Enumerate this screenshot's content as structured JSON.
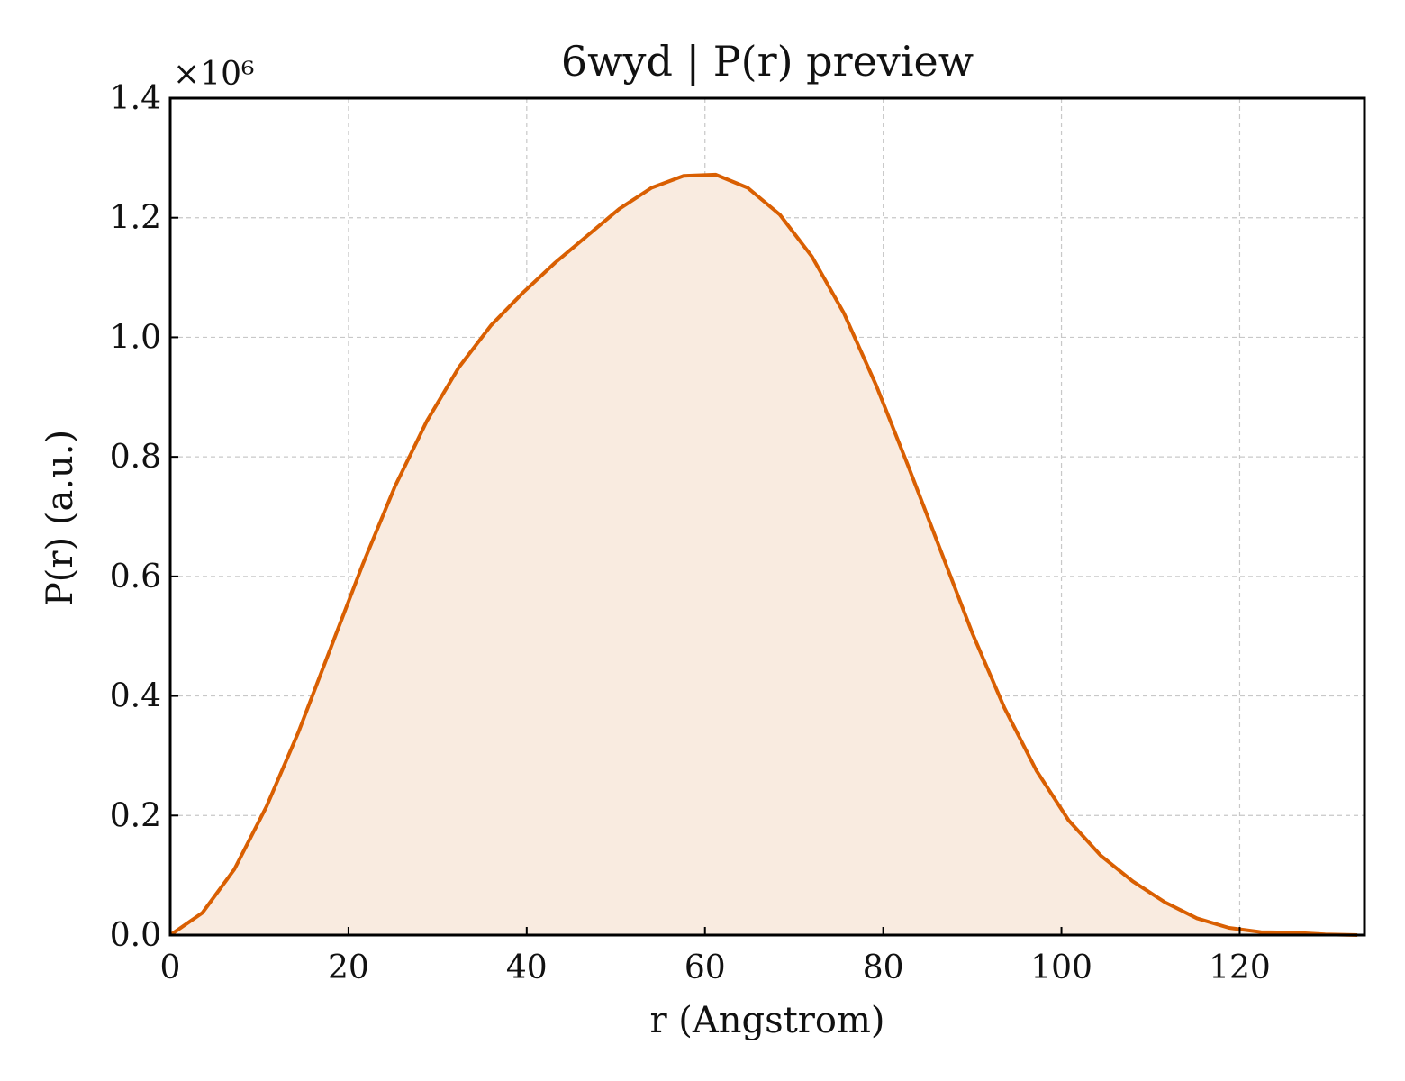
{
  "chart_data": {
    "type": "area",
    "title": "6wyd | P(r) preview",
    "xlabel": "r (Angstrom)",
    "ylabel": "P(r) (a.u.)",
    "y_offset_label": "×10⁶",
    "y_scale_factor": 1000000,
    "xlim": [
      0,
      134
    ],
    "ylim": [
      0,
      1.4
    ],
    "x_ticks": [
      0,
      20,
      40,
      60,
      80,
      100,
      120
    ],
    "x_tick_labels": [
      "0",
      "20",
      "40",
      "60",
      "80",
      "100",
      "120"
    ],
    "y_ticks": [
      0,
      0.2,
      0.4,
      0.6,
      0.8,
      1.0,
      1.2,
      1.4
    ],
    "y_tick_labels": [
      "0.0",
      "0.2",
      "0.4",
      "0.6",
      "0.8",
      "1.0",
      "1.2",
      "1.4"
    ],
    "grid": true,
    "line_color": "#d95f02",
    "fill_color": "#f9ebe0",
    "series": [
      {
        "x": [
          0,
          3.6,
          7.2,
          10.8,
          14.4,
          18.0,
          21.6,
          25.2,
          28.8,
          32.4,
          36.0,
          39.6,
          43.2,
          46.8,
          50.4,
          54.0,
          57.6,
          61.2,
          64.8,
          68.4,
          72.0,
          75.6,
          79.2,
          82.8,
          86.4,
          90.0,
          93.6,
          97.2,
          100.8,
          104.4,
          108.0,
          111.6,
          115.2,
          118.8,
          122.4,
          126.0,
          129.6,
          133.2
        ],
        "y": [
          0.0,
          0.037,
          0.11,
          0.215,
          0.34,
          0.48,
          0.62,
          0.75,
          0.86,
          0.95,
          1.02,
          1.075,
          1.125,
          1.17,
          1.215,
          1.25,
          1.27,
          1.272,
          1.25,
          1.205,
          1.135,
          1.04,
          0.92,
          0.785,
          0.645,
          0.505,
          0.38,
          0.275,
          0.192,
          0.133,
          0.09,
          0.055,
          0.028,
          0.012,
          0.005,
          0.004,
          0.001,
          0.0
        ]
      }
    ]
  }
}
